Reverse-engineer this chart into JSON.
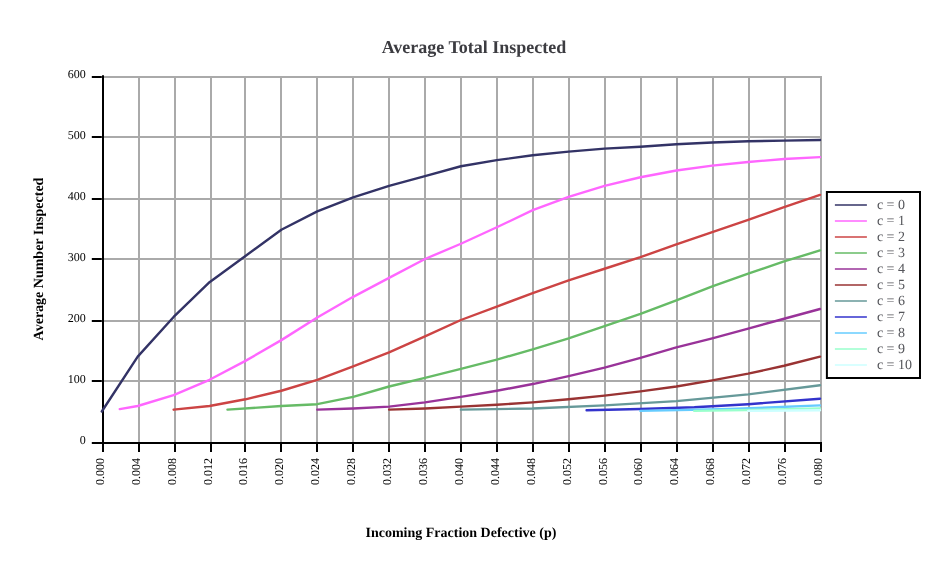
{
  "chart_data": {
    "type": "line",
    "title": "Average Total Inspected",
    "xlabel": "Incoming Fraction Defective (p)",
    "ylabel": "Average Number Inspected",
    "xlim": [
      0,
      0.08
    ],
    "xticks": [
      {
        "value": 0,
        "label": "0.000"
      },
      {
        "value": 0.004,
        "label": "0.004"
      },
      {
        "value": 0.008,
        "label": "0.008"
      },
      {
        "value": 0.012,
        "label": "0.012"
      },
      {
        "value": 0.016,
        "label": "0.016"
      },
      {
        "value": 0.02,
        "label": "0.020"
      },
      {
        "value": 0.024,
        "label": "0.024"
      },
      {
        "value": 0.028,
        "label": "0.028"
      },
      {
        "value": 0.032,
        "label": "0.032"
      },
      {
        "value": 0.036,
        "label": "0.036"
      },
      {
        "value": 0.04,
        "label": "0.040"
      },
      {
        "value": 0.044,
        "label": "0.044"
      },
      {
        "value": 0.048,
        "label": "0.048"
      },
      {
        "value": 0.052,
        "label": "0.052"
      },
      {
        "value": 0.056,
        "label": "0.056"
      },
      {
        "value": 0.06,
        "label": "0.060"
      },
      {
        "value": 0.064,
        "label": "0.064"
      },
      {
        "value": 0.068,
        "label": "0.068"
      },
      {
        "value": 0.072,
        "label": "0.072"
      },
      {
        "value": 0.076,
        "label": "0.076"
      },
      {
        "value": 0.08,
        "label": "0.080"
      }
    ],
    "ylim": [
      0,
      600
    ],
    "yticks": [
      0,
      100,
      200,
      300,
      400,
      500,
      600
    ],
    "grid": true,
    "legend": "right",
    "marker": "none",
    "line_style": "solid",
    "series": [
      {
        "name": "c = 0",
        "color": "#333366",
        "x": [
          0,
          0.004,
          0.008,
          0.012,
          0.016,
          0.02,
          0.024,
          0.028,
          0.032,
          0.036,
          0.04,
          0.044,
          0.048,
          0.052,
          0.056,
          0.06,
          0.064,
          0.068,
          0.072,
          0.076,
          0.08
        ],
        "values": [
          50,
          140,
          205,
          262,
          305,
          348,
          378,
          401,
          420,
          436,
          452,
          462,
          470,
          476,
          481,
          484,
          488,
          491,
          493,
          494,
          495
        ]
      },
      {
        "name": "c = 1",
        "color": "#ff66ff",
        "x": [
          0.002,
          0.004,
          0.008,
          0.012,
          0.016,
          0.02,
          0.024,
          0.028,
          0.032,
          0.036,
          0.04,
          0.044,
          0.048,
          0.052,
          0.056,
          0.06,
          0.064,
          0.068,
          0.072,
          0.076,
          0.08
        ],
        "values": [
          54,
          59,
          77,
          102,
          133,
          167,
          204,
          238,
          269,
          300,
          325,
          352,
          380,
          402,
          420,
          434,
          445,
          453,
          459,
          464,
          467
        ]
      },
      {
        "name": "c = 2",
        "color": "#cc4444",
        "x": [
          0.008,
          0.012,
          0.016,
          0.02,
          0.024,
          0.028,
          0.032,
          0.036,
          0.04,
          0.044,
          0.048,
          0.052,
          0.056,
          0.06,
          0.064,
          0.068,
          0.072,
          0.076,
          0.08
        ],
        "values": [
          53,
          59,
          70,
          84,
          102,
          124,
          147,
          173,
          200,
          222,
          244,
          265,
          284,
          303,
          324,
          344,
          364,
          385,
          405
        ]
      },
      {
        "name": "c = 3",
        "color": "#66bb66",
        "x": [
          0.014,
          0.02,
          0.024,
          0.028,
          0.032,
          0.036,
          0.04,
          0.044,
          0.048,
          0.052,
          0.056,
          0.06,
          0.064,
          0.068,
          0.072,
          0.076,
          0.08
        ],
        "values": [
          53,
          59,
          62,
          74,
          91,
          105,
          120,
          135,
          152,
          170,
          190,
          210,
          232,
          255,
          276,
          296,
          314
        ]
      },
      {
        "name": "c = 4",
        "color": "#993399",
        "x": [
          0.024,
          0.028,
          0.032,
          0.036,
          0.04,
          0.044,
          0.048,
          0.052,
          0.056,
          0.06,
          0.064,
          0.068,
          0.072,
          0.076,
          0.08
        ],
        "values": [
          53,
          55,
          58,
          65,
          74,
          84,
          95,
          108,
          122,
          138,
          155,
          170,
          186,
          202,
          218
        ]
      },
      {
        "name": "c = 5",
        "color": "#993333",
        "x": [
          0.032,
          0.036,
          0.04,
          0.044,
          0.048,
          0.052,
          0.056,
          0.06,
          0.064,
          0.068,
          0.072,
          0.076,
          0.08
        ],
        "values": [
          53,
          55,
          58,
          61,
          65,
          70,
          76,
          83,
          91,
          101,
          112,
          125,
          140
        ]
      },
      {
        "name": "c = 6",
        "color": "#669999",
        "x": [
          0.04,
          0.048,
          0.056,
          0.064,
          0.072,
          0.08
        ],
        "values": [
          53,
          55,
          60,
          67,
          78,
          93
        ]
      },
      {
        "name": "c = 7",
        "color": "#3333cc",
        "x": [
          0.054,
          0.06,
          0.066,
          0.072,
          0.08
        ],
        "values": [
          52,
          54,
          57,
          62,
          71
        ]
      },
      {
        "name": "c = 8",
        "color": "#66ccff",
        "x": [
          0.06,
          0.07,
          0.08
        ],
        "values": [
          51,
          54,
          60
        ]
      },
      {
        "name": "c = 9",
        "color": "#99ffcc",
        "x": [
          0.066,
          0.074,
          0.08
        ],
        "values": [
          51,
          53,
          55
        ]
      },
      {
        "name": "c = 10",
        "color": "#ccffff",
        "x": [
          0.072,
          0.08
        ],
        "values": [
          51,
          52
        ]
      }
    ]
  }
}
